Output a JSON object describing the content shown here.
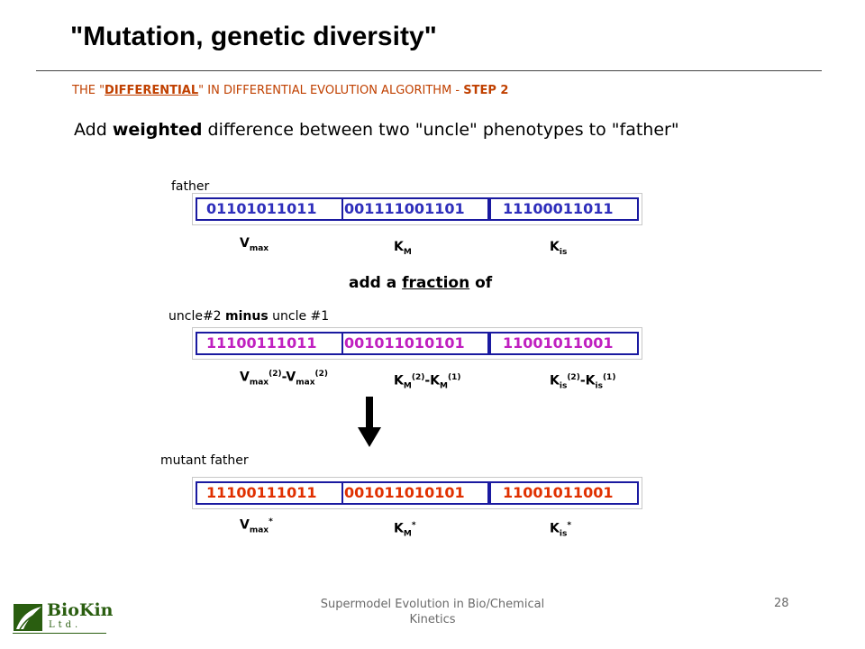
{
  "slide": {
    "title": "\"Mutation, genetic diversity\"",
    "subtitle_prefix": "THE \"",
    "subtitle_keyword": "DIFFERENTIAL",
    "subtitle_middle": "\" IN DIFFERENTIAL EVOLUTION ALGORITHM - ",
    "subtitle_step": "STEP 2",
    "intro_prefix": "Add ",
    "intro_bold": "weighted",
    "intro_suffix": " difference between two \"uncle\" phenotypes to \"father\""
  },
  "father": {
    "label": "father",
    "segments": [
      "01101011011",
      "001111001101",
      "11100011011"
    ],
    "vars": {
      "v": "V",
      "v_sub": "max",
      "k": "K",
      "k_sub": "M",
      "ki": "K",
      "ki_sub": "is"
    }
  },
  "middle": {
    "prefix": "add a ",
    "underlined": "fraction",
    "suffix": " of"
  },
  "uncle": {
    "label_prefix": "uncle#2 ",
    "label_bold": "minus",
    "label_suffix": " uncle #1",
    "segments": [
      "11100111011",
      "001011010101",
      "11001011001"
    ],
    "vars": {
      "v": "V",
      "v_sub": "max",
      "v_sup": "(2)",
      "v_minus": "-V",
      "v_sub2": "max",
      "v_sup2": "(2)",
      "k": "K",
      "k_sub": "M",
      "k_sup": "(2)",
      "k_minus": "-K",
      "k_sub2": "M",
      "k_sup2": "(1)",
      "ki": "K",
      "ki_sub": "is",
      "ki_sup": "(2)",
      "ki_minus": "-K",
      "ki_sub2": "is",
      "ki_sup2": "(1)"
    }
  },
  "mutant": {
    "label": "mutant father",
    "segments": [
      "11100111011",
      "001011010101",
      "11001011001"
    ],
    "vars": {
      "v": "V",
      "v_sub": "max",
      "v_sup": "*",
      "k": "K",
      "k_sub": "M",
      "k_sup": "*",
      "ki": "K",
      "ki_sub": "is",
      "ki_sup": "*"
    }
  },
  "footer": {
    "text": "Supermodel Evolution in Bio/Chemical Kinetics",
    "page": "28"
  },
  "logo": {
    "name": "BioKin",
    "sub": "Ltd."
  },
  "colors": {
    "father": "#2e2ebb",
    "uncle": "#c020c0",
    "mutant": "#e03000",
    "box_border": "#1a1aa0",
    "subtitle": "#c04000",
    "logo": "#2a5e10"
  },
  "icons": {
    "arrow": "down-arrow-icon",
    "logo": "leaf-logo-icon"
  }
}
